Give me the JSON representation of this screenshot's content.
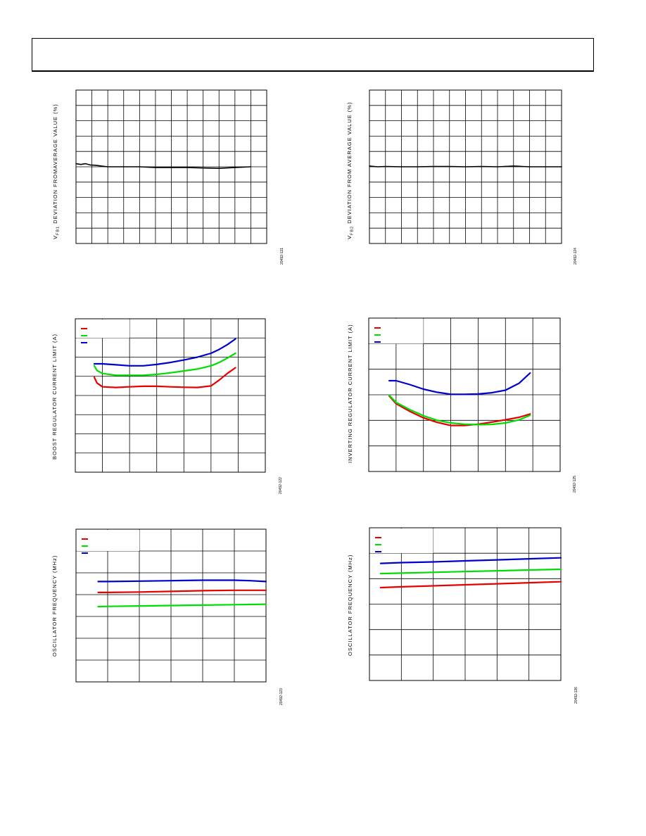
{
  "charts": [
    {
      "id": "c1",
      "ylabel_main": "V",
      "ylabel_sub": "FB1",
      "ylabel_rest": " DEVIATION FROMAVERAGE VALUE (%)",
      "figure_id": "20492-121",
      "chart_data": {
        "type": "line",
        "title": "",
        "xlabel": "",
        "ylabel": "VFB1 DEVIATION FROMAVERAGE VALUE (%)",
        "xlim": [
          0,
          12
        ],
        "ylim": [
          0,
          10
        ],
        "grid": true,
        "x_gridlines": 12,
        "y_gridlines": 10,
        "legend": [],
        "series": [
          {
            "color": "#000000",
            "x": [
              0,
              0.3,
              0.6,
              0.9,
              1.2,
              1.6,
              2,
              3,
              4,
              5,
              6,
              7,
              8,
              9,
              10,
              11
            ],
            "y": [
              5.2,
              5.15,
              5.2,
              5.12,
              5.1,
              5.05,
              5.0,
              5.0,
              5.0,
              4.95,
              4.95,
              4.95,
              4.92,
              4.9,
              4.95,
              5.0
            ]
          }
        ]
      }
    },
    {
      "id": "c2",
      "ylabel_main": "V",
      "ylabel_sub": "FB2",
      "ylabel_rest": " DEVIATION FROM AVERAGE VALUE (%)",
      "figure_id": "20492-124",
      "chart_data": {
        "type": "line",
        "title": "",
        "xlabel": "",
        "ylabel": "VFB2 DEVIATION FROM AVERAGE VALUE (%)",
        "xlim": [
          0,
          12
        ],
        "ylim": [
          0,
          10
        ],
        "grid": true,
        "x_gridlines": 12,
        "y_gridlines": 10,
        "legend": [],
        "series": [
          {
            "color": "#000000",
            "x": [
              0,
              0.5,
              1,
              2,
              3,
              4,
              5,
              6,
              7,
              8,
              9,
              10,
              11,
              12
            ],
            "y": [
              5.05,
              5.0,
              5.02,
              5.0,
              5.0,
              5.02,
              5.02,
              5.0,
              5.02,
              5.0,
              5.05,
              5.0,
              5.0,
              5.0
            ]
          }
        ]
      }
    },
    {
      "id": "c3",
      "ylabel_main": "BOOST REGULATOR CURRENT LIMIT (A)",
      "ylabel_sub": "",
      "ylabel_rest": "",
      "figure_id": "20492-122",
      "chart_data": {
        "type": "line",
        "title": "",
        "xlabel": "",
        "ylabel": "BOOST REGULATOR CURRENT LIMIT (A)",
        "xlim": [
          0,
          7
        ],
        "ylim": [
          0,
          8
        ],
        "grid": true,
        "x_gridlines": 7,
        "y_gridlines": 8,
        "legend_box": {
          "cols": 2,
          "rows": 1
        },
        "legend": [
          {
            "color": "#e60000"
          },
          {
            "color": "#00dd00"
          },
          {
            "color": "#0000cc"
          }
        ],
        "series": [
          {
            "color": "#e60000",
            "x": [
              0.7,
              0.8,
              1.0,
              1.5,
              2,
              2.5,
              3,
              3.5,
              4,
              4.5,
              5,
              5.3,
              5.6,
              5.9
            ],
            "y": [
              4.95,
              4.65,
              4.45,
              4.42,
              4.45,
              4.48,
              4.48,
              4.45,
              4.43,
              4.42,
              4.5,
              4.8,
              5.15,
              5.45
            ]
          },
          {
            "color": "#00dd00",
            "x": [
              0.7,
              0.8,
              1.0,
              1.5,
              2,
              2.5,
              3,
              3.5,
              4,
              4.5,
              5,
              5.3,
              5.6,
              5.9
            ],
            "y": [
              5.55,
              5.3,
              5.15,
              5.05,
              5.05,
              5.05,
              5.1,
              5.18,
              5.28,
              5.38,
              5.55,
              5.72,
              5.95,
              6.2
            ]
          },
          {
            "color": "#0000cc",
            "x": [
              0.7,
              1.0,
              1.5,
              2,
              2.5,
              3,
              3.5,
              4,
              4.5,
              5,
              5.3,
              5.6,
              5.9
            ],
            "y": [
              5.65,
              5.65,
              5.6,
              5.55,
              5.55,
              5.62,
              5.72,
              5.85,
              6.0,
              6.2,
              6.4,
              6.65,
              6.95
            ]
          }
        ]
      }
    },
    {
      "id": "c4",
      "ylabel_main": "INVERTING REGULATOR CURRENT LIMIT (A)",
      "ylabel_sub": "",
      "ylabel_rest": "",
      "figure_id": "20492-125",
      "chart_data": {
        "type": "line",
        "title": "",
        "xlabel": "",
        "ylabel": "INVERTING REGULATOR CURRENT LIMIT (A)",
        "xlim": [
          0,
          7
        ],
        "ylim": [
          0,
          6
        ],
        "grid": true,
        "x_gridlines": 7,
        "y_gridlines": 6,
        "legend_box": {
          "cols": 2,
          "rows": 1
        },
        "legend": [
          {
            "color": "#e60000"
          },
          {
            "color": "#00dd00"
          },
          {
            "color": "#0000cc"
          }
        ],
        "series": [
          {
            "color": "#e60000",
            "x": [
              0.75,
              1,
              1.5,
              2,
              2.5,
              3,
              3.5,
              4,
              4.5,
              5,
              5.5,
              5.9
            ],
            "y": [
              2.95,
              2.65,
              2.35,
              2.1,
              1.92,
              1.8,
              1.8,
              1.85,
              1.93,
              2.02,
              2.12,
              2.25
            ]
          },
          {
            "color": "#00dd00",
            "x": [
              0.75,
              1,
              1.5,
              2,
              2.5,
              3,
              3.5,
              4,
              4.5,
              5,
              5.5,
              5.9
            ],
            "y": [
              2.98,
              2.7,
              2.42,
              2.18,
              2.0,
              1.9,
              1.85,
              1.83,
              1.84,
              1.9,
              2.02,
              2.2
            ]
          },
          {
            "color": "#0000cc",
            "x": [
              0.75,
              1,
              1.5,
              2,
              2.5,
              3,
              3.5,
              4,
              4.5,
              5,
              5.5,
              5.9
            ],
            "y": [
              3.55,
              3.55,
              3.4,
              3.22,
              3.1,
              3.02,
              3.02,
              3.03,
              3.08,
              3.18,
              3.45,
              3.85
            ]
          }
        ]
      }
    },
    {
      "id": "c5",
      "ylabel_main": "OSCILLATOR FREQUENCY (MHz)",
      "ylabel_sub": "",
      "ylabel_rest": "",
      "figure_id": "20492-123",
      "chart_data": {
        "type": "line",
        "title": "",
        "xlabel": "",
        "ylabel": "OSCILLATOR FREQUENCY (MHz)",
        "xlim": [
          0,
          6
        ],
        "ylim": [
          0,
          7
        ],
        "grid": true,
        "x_gridlines": 6,
        "y_gridlines": 7,
        "legend_box": {
          "cols": 2,
          "rows": 1
        },
        "legend": [
          {
            "color": "#e60000"
          },
          {
            "color": "#00dd00"
          },
          {
            "color": "#0000cc"
          }
        ],
        "series": [
          {
            "color": "#e60000",
            "x": [
              0.7,
              1,
              2,
              3,
              4,
              5,
              6
            ],
            "y": [
              4.1,
              4.1,
              4.12,
              4.15,
              4.18,
              4.2,
              4.2
            ]
          },
          {
            "color": "#00dd00",
            "x": [
              0.7,
              1,
              2,
              3,
              4,
              5,
              6
            ],
            "y": [
              3.45,
              3.46,
              3.48,
              3.5,
              3.52,
              3.54,
              3.56
            ]
          },
          {
            "color": "#0000cc",
            "x": [
              0.7,
              1,
              2,
              3,
              4,
              5,
              5.5,
              6
            ],
            "y": [
              4.6,
              4.6,
              4.62,
              4.64,
              4.66,
              4.66,
              4.64,
              4.6
            ]
          }
        ]
      }
    },
    {
      "id": "c6",
      "ylabel_main": "OSCILLATOR FREQUENCY (MHz)",
      "ylabel_sub": "",
      "ylabel_rest": "",
      "figure_id": "20492-126",
      "chart_data": {
        "type": "line",
        "title": "",
        "xlabel": "",
        "ylabel": "OSCILLATOR FREQUENCY (MHz)",
        "xlim": [
          0,
          6
        ],
        "ylim": [
          0,
          6
        ],
        "grid": true,
        "x_gridlines": 6,
        "y_gridlines": 6,
        "legend_box": {
          "cols": 2,
          "rows": 1
        },
        "legend": [
          {
            "color": "#e60000"
          },
          {
            "color": "#00dd00"
          },
          {
            "color": "#0000cc"
          }
        ],
        "series": [
          {
            "color": "#e60000",
            "x": [
              0.35,
              1,
              2,
              3,
              4,
              5,
              6
            ],
            "y": [
              3.65,
              3.68,
              3.72,
              3.76,
              3.8,
              3.84,
              3.88
            ]
          },
          {
            "color": "#00dd00",
            "x": [
              0.35,
              1,
              2,
              3,
              4,
              5,
              6
            ],
            "y": [
              4.2,
              4.22,
              4.25,
              4.28,
              4.31,
              4.34,
              4.37
            ]
          },
          {
            "color": "#0000cc",
            "x": [
              0.35,
              1,
              2,
              3,
              4,
              5,
              6
            ],
            "y": [
              4.6,
              4.63,
              4.66,
              4.7,
              4.74,
              4.78,
              4.82
            ]
          }
        ]
      }
    }
  ]
}
